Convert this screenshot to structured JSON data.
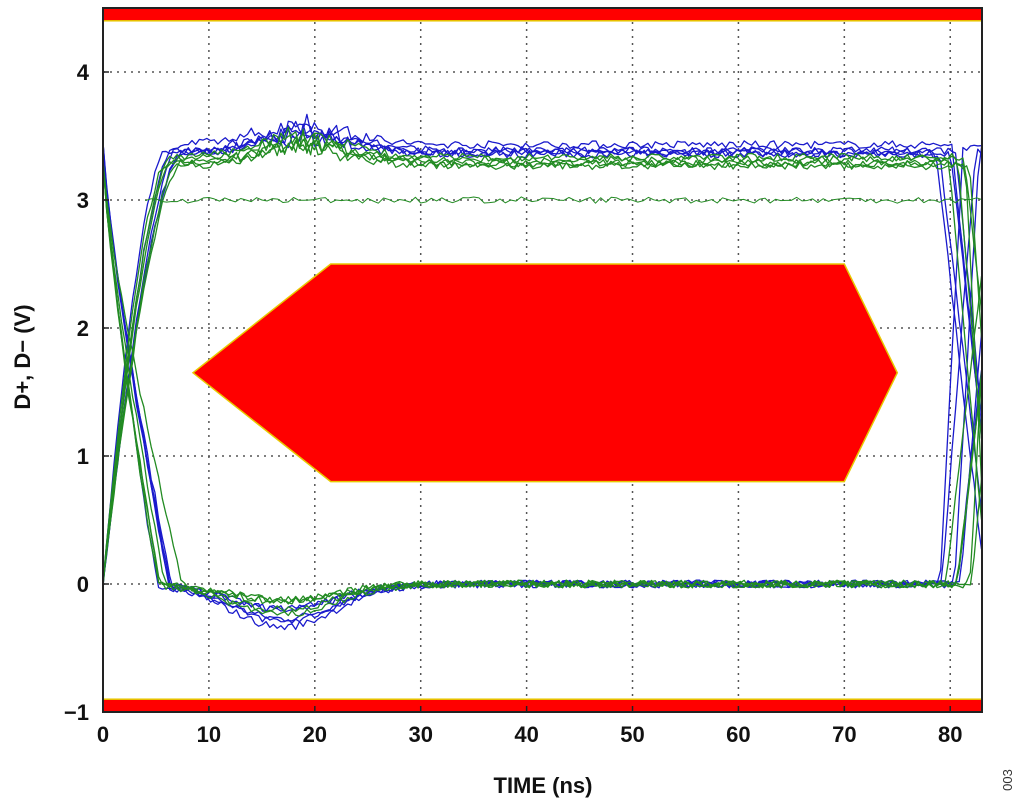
{
  "chart_data": {
    "type": "line",
    "title": "",
    "xlabel": "TIME (ns)",
    "ylabel": "D+, D− (V)",
    "xlim": [
      0,
      83
    ],
    "ylim": [
      -1,
      4.5
    ],
    "xticks": [
      0,
      10,
      20,
      30,
      40,
      50,
      60,
      70,
      80
    ],
    "yticks": [
      {
        "value": -1,
        "label": "−1"
      },
      {
        "value": 0,
        "label": "0"
      },
      {
        "value": 1,
        "label": "1"
      },
      {
        "value": 2,
        "label": "2"
      },
      {
        "value": 3,
        "label": "3"
      },
      {
        "value": 4,
        "label": "4"
      }
    ],
    "grid": true,
    "legend": "none",
    "mask": {
      "name": "eye-mask",
      "color": "#ff0000",
      "polygon": [
        [
          8.5,
          1.65
        ],
        [
          21.5,
          0.8
        ],
        [
          70,
          0.8
        ],
        [
          75,
          1.65
        ],
        [
          70,
          2.5
        ],
        [
          21.5,
          2.5
        ]
      ],
      "upper_limit_v": 4.4,
      "lower_limit_v": -0.9
    },
    "series": [
      {
        "color": "#1a1acc",
        "levels_v": {
          "high": 3.4,
          "low": 0.0
        },
        "transitions_ns": [
          0,
          79.5
        ]
      },
      {
        "color": "#228b22",
        "levels_v": {
          "high": 3.3,
          "low": 0.0,
          "mid_high": 3.0
        },
        "transitions_ns": [
          0,
          80.5
        ]
      }
    ]
  },
  "figure_id": "003",
  "colors": {
    "mask": "#ff0000",
    "mask_edge": "#e8c800",
    "series_1": "#1a1acc",
    "series_2": "#228b22",
    "grid": "#555555",
    "frame": "#222222"
  }
}
